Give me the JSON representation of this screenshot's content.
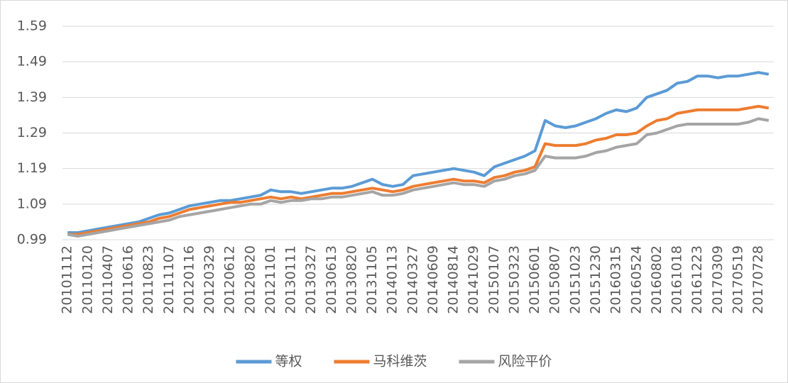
{
  "chart_data": {
    "type": "line",
    "categories": [
      "20101112",
      null,
      "20110120",
      null,
      "20110407",
      null,
      "20110616",
      null,
      "20110823",
      null,
      "20111107",
      null,
      "20120116",
      null,
      "20120329",
      null,
      "20120612",
      null,
      "20120820",
      null,
      "20121101",
      null,
      "20130111",
      null,
      "20130327",
      null,
      "20130613",
      null,
      "20130820",
      null,
      "20131105",
      null,
      "20140113",
      null,
      "20140327",
      null,
      "20140609",
      null,
      "20140814",
      null,
      "20141029",
      null,
      "20150107",
      null,
      "20150323",
      null,
      "20150601",
      null,
      "20150807",
      null,
      "20151023",
      null,
      "20151230",
      null,
      "20160315",
      null,
      "20160524",
      null,
      "20160802",
      null,
      "20161018",
      null,
      "20161223",
      null,
      "20170309",
      null,
      "20170519",
      null,
      "20170728",
      null
    ],
    "series": [
      {
        "name": "等权",
        "color": "#5b9bd5",
        "values": [
          1.01,
          1.01,
          1.015,
          1.02,
          1.025,
          1.03,
          1.035,
          1.04,
          1.05,
          1.06,
          1.065,
          1.075,
          1.085,
          1.09,
          1.095,
          1.1,
          1.1,
          1.105,
          1.11,
          1.115,
          1.13,
          1.125,
          1.125,
          1.12,
          1.125,
          1.13,
          1.135,
          1.135,
          1.14,
          1.15,
          1.16,
          1.145,
          1.14,
          1.145,
          1.17,
          1.175,
          1.18,
          1.185,
          1.19,
          1.185,
          1.18,
          1.17,
          1.195,
          1.205,
          1.215,
          1.225,
          1.24,
          1.325,
          1.31,
          1.305,
          1.31,
          1.32,
          1.33,
          1.345,
          1.355,
          1.35,
          1.36,
          1.39,
          1.4,
          1.41,
          1.43,
          1.435,
          1.45,
          1.45,
          1.445,
          1.45,
          1.45,
          1.455,
          1.46,
          1.455
        ]
      },
      {
        "name": "马科维茨",
        "color": "#ed7d31",
        "values": [
          1.005,
          1.005,
          1.01,
          1.015,
          1.02,
          1.025,
          1.03,
          1.035,
          1.04,
          1.05,
          1.055,
          1.065,
          1.075,
          1.08,
          1.085,
          1.09,
          1.095,
          1.095,
          1.1,
          1.105,
          1.11,
          1.105,
          1.11,
          1.105,
          1.11,
          1.115,
          1.12,
          1.12,
          1.125,
          1.13,
          1.135,
          1.13,
          1.125,
          1.13,
          1.14,
          1.145,
          1.15,
          1.155,
          1.16,
          1.155,
          1.155,
          1.15,
          1.165,
          1.17,
          1.18,
          1.185,
          1.195,
          1.26,
          1.255,
          1.255,
          1.255,
          1.26,
          1.27,
          1.275,
          1.285,
          1.285,
          1.29,
          1.31,
          1.325,
          1.33,
          1.345,
          1.35,
          1.355,
          1.355,
          1.355,
          1.355,
          1.355,
          1.36,
          1.365,
          1.36
        ]
      },
      {
        "name": "风险平价",
        "color": "#a5a5a5",
        "values": [
          1.005,
          1.0,
          1.005,
          1.01,
          1.015,
          1.02,
          1.025,
          1.03,
          1.035,
          1.04,
          1.045,
          1.055,
          1.06,
          1.065,
          1.07,
          1.075,
          1.08,
          1.085,
          1.09,
          1.09,
          1.1,
          1.095,
          1.1,
          1.1,
          1.105,
          1.105,
          1.11,
          1.11,
          1.115,
          1.12,
          1.125,
          1.115,
          1.115,
          1.12,
          1.13,
          1.135,
          1.14,
          1.145,
          1.15,
          1.145,
          1.145,
          1.14,
          1.155,
          1.16,
          1.17,
          1.175,
          1.185,
          1.225,
          1.22,
          1.22,
          1.22,
          1.225,
          1.235,
          1.24,
          1.25,
          1.255,
          1.26,
          1.285,
          1.29,
          1.3,
          1.31,
          1.315,
          1.315,
          1.315,
          1.315,
          1.315,
          1.315,
          1.32,
          1.33,
          1.325
        ]
      }
    ],
    "ylim": [
      0.99,
      1.59
    ],
    "yticks": [
      0.99,
      1.09,
      1.19,
      1.29,
      1.39,
      1.49,
      1.59
    ],
    "grid": true,
    "legend": "bottom"
  }
}
